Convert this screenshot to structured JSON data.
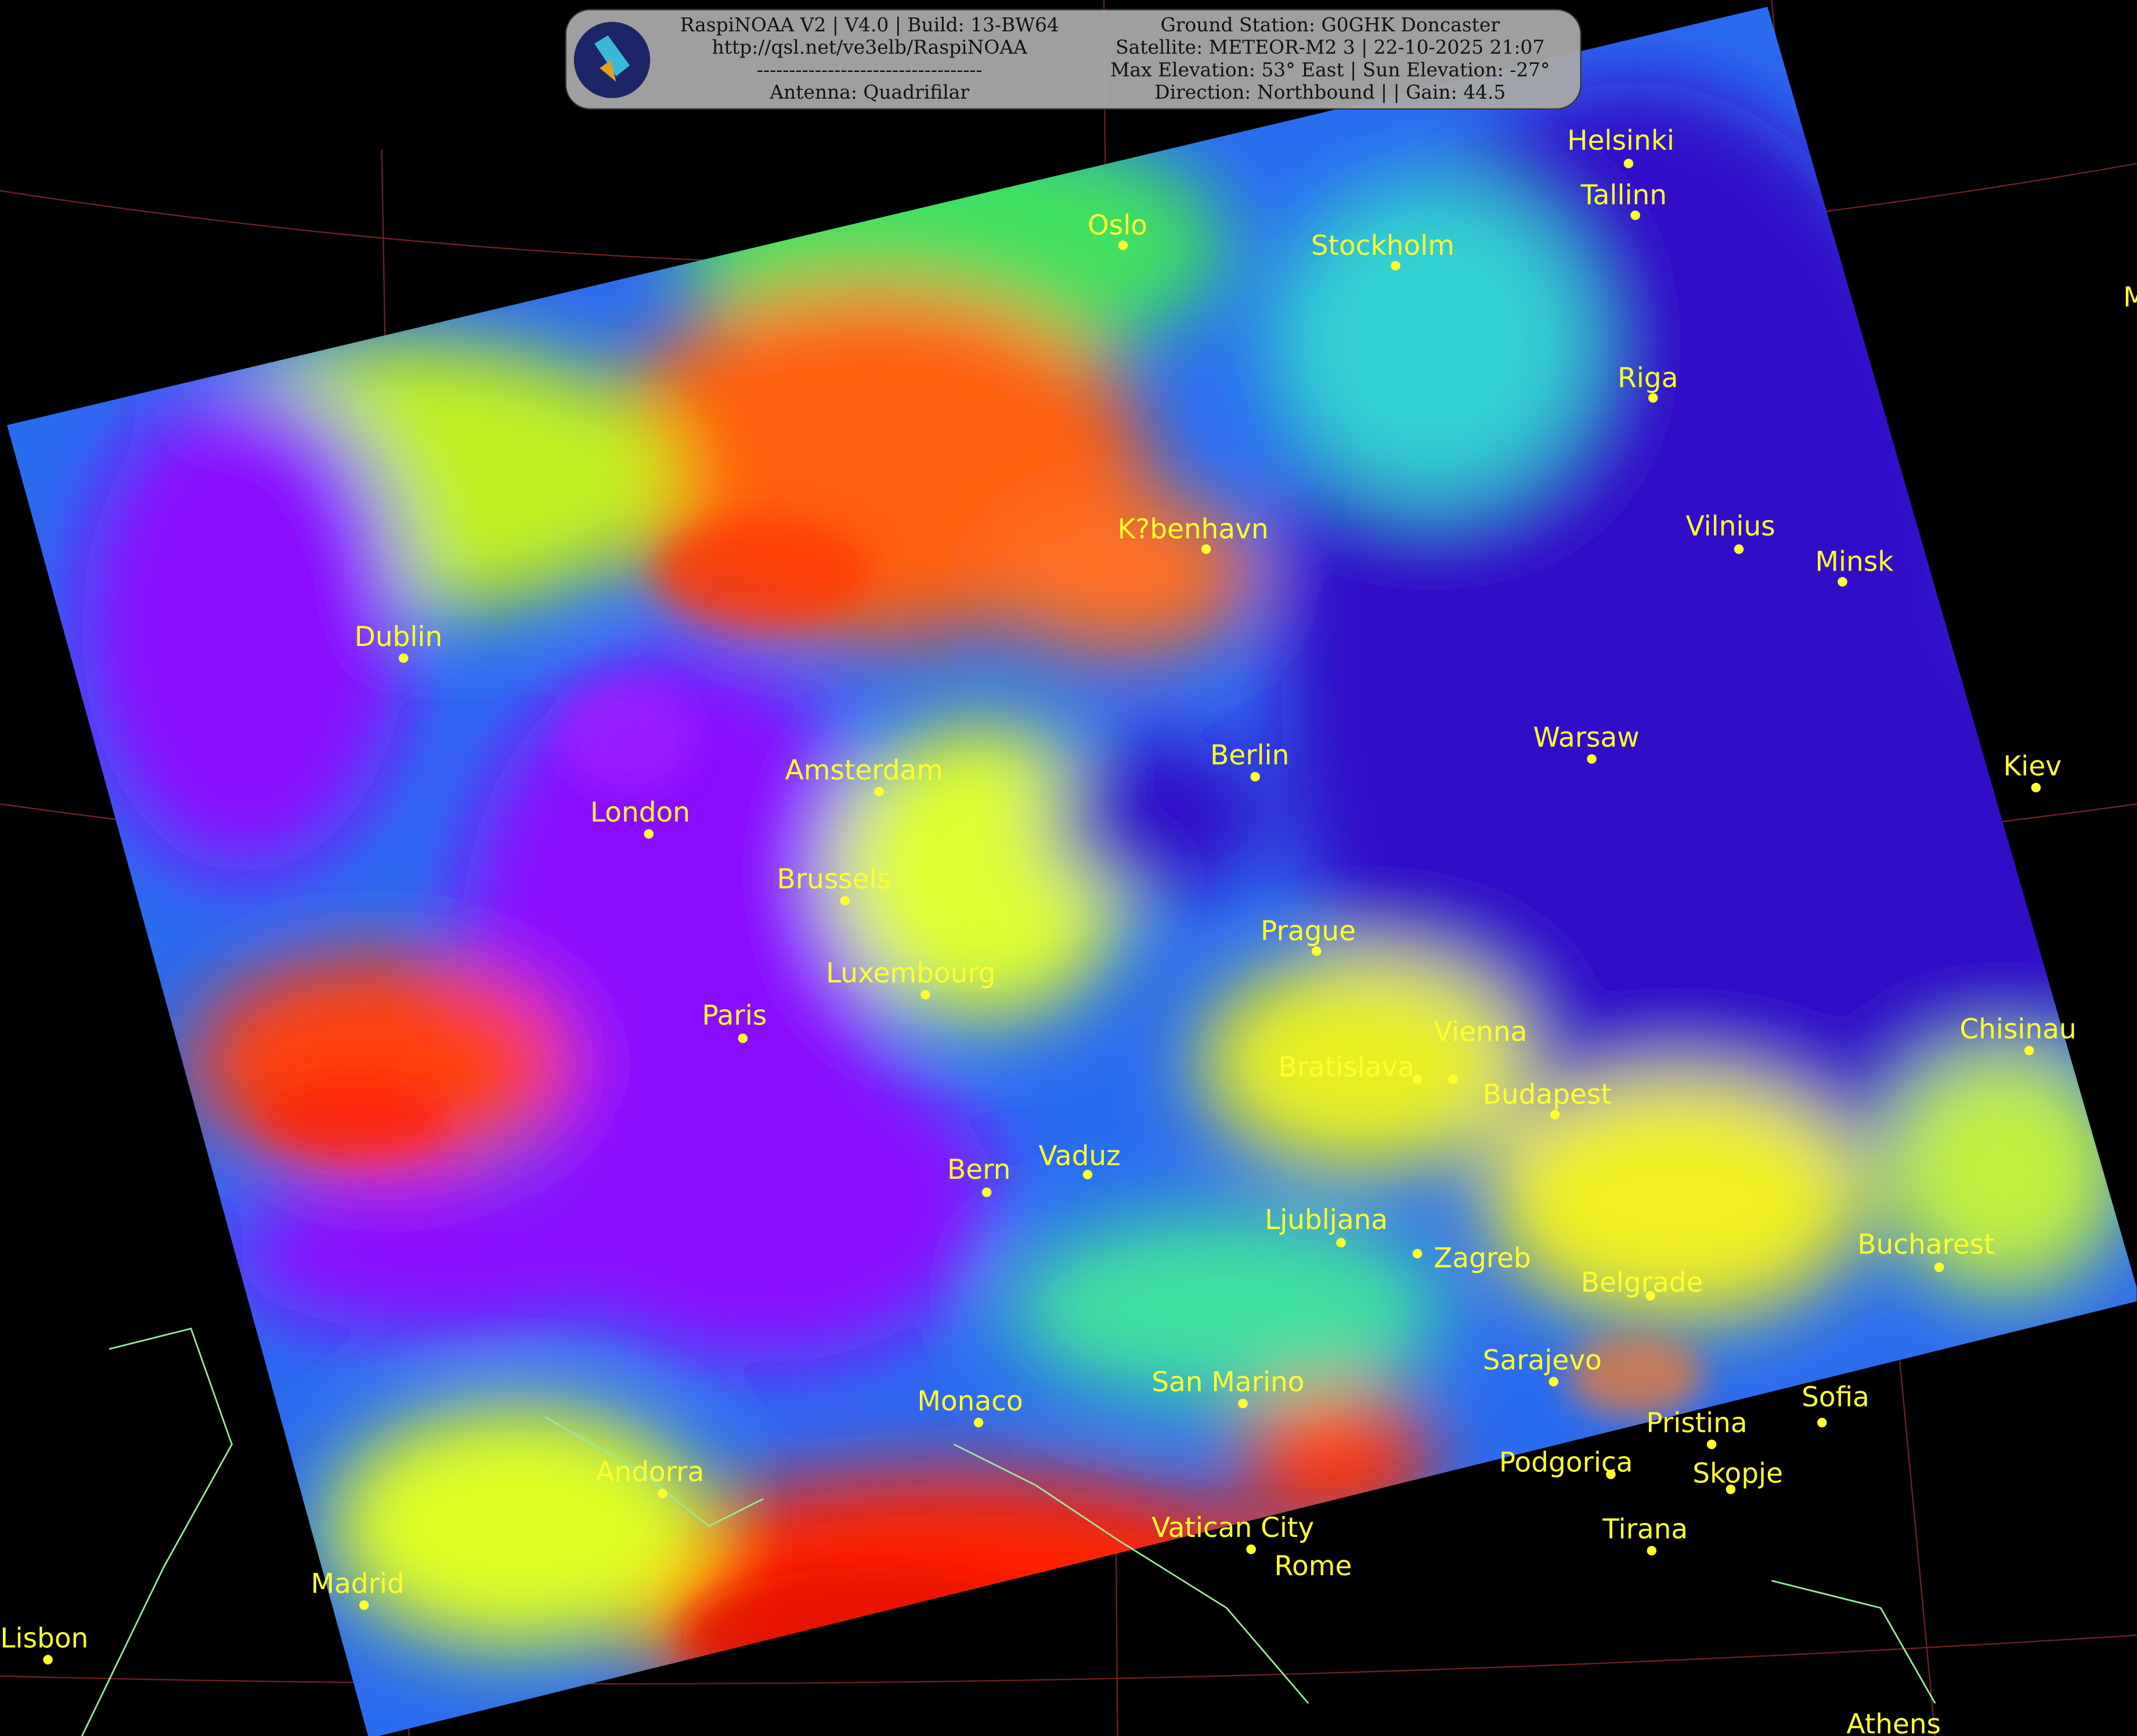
{
  "header": {
    "left_lines": [
      "RaspiNOAA V2 | V4.0 | Build: 13-BW64",
      "http://qsl.net/ve3elb/RaspiNOAA",
      "-----------------------------------",
      "Antenna: Quadrifilar"
    ],
    "right_lines": [
      "Ground Station: G0GHK Doncaster",
      "Satellite: METEOR-M2 3 | 22-10-2025 21:07",
      "Max Elevation: 53° East | Sun Elevation: -27°",
      "Direction: Northbound | | Gain: 44.5"
    ],
    "logo_icon": "satellite-icon"
  },
  "cities": [
    "Helsinki",
    "Tallinn",
    "Oslo",
    "Stockholm",
    "Riga",
    "K?benhavn",
    "Vilnius",
    "Minsk",
    "Dublin",
    "Warsaw",
    "Berlin",
    "Amsterdam",
    "Kiev",
    "London",
    "Brussels",
    "Prague",
    "Luxembourg",
    "Paris",
    "Chisinau",
    "Vienna",
    "Bratislava",
    "Budapest",
    "Bern",
    "Vaduz",
    "Ljubljana",
    "Zagreb",
    "Bucharest",
    "Belgrade",
    "Sarajevo",
    "Monaco",
    "San Marino",
    "Sofia",
    "Pristina",
    "Podgorica",
    "Skopje",
    "Andorra",
    "Tirana",
    "Vatican City",
    "Rome",
    "Madrid",
    "Lisbon",
    "Athens",
    "M"
  ],
  "colors": {
    "label": "#ffff30",
    "coast": "#9be89b",
    "border": "#e8e830",
    "grid": "#8b2a2a"
  }
}
